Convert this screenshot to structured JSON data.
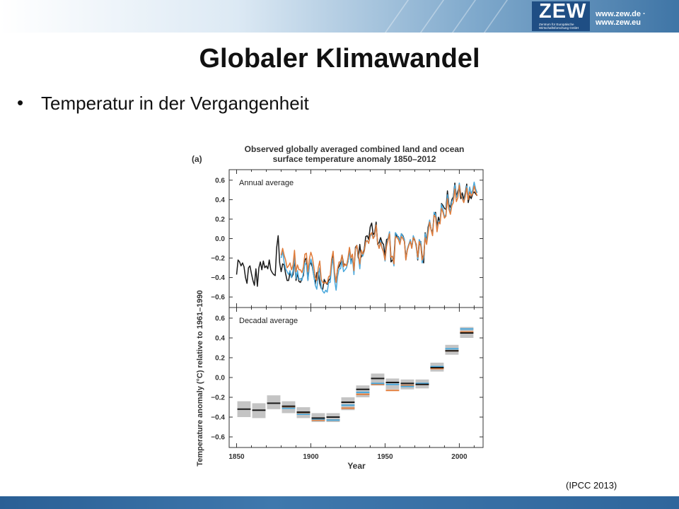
{
  "header": {
    "logo_text": "ZEW",
    "logo_subtitle": "Zentrum für Europäische Wirtschaftsforschung GmbH",
    "url": "www.zew.de · www.zew.eu"
  },
  "slide": {
    "title": "Globaler Klimawandel",
    "bullet_symbol": "•",
    "bullet_text": "Temperatur in der Vergangenheit",
    "source": "(IPCC 2013)"
  },
  "colors": {
    "black_series": "#1a1a1a",
    "blue_series": "#4aa8dc",
    "orange_series": "#e07b39",
    "uncertainty_box": "#c4c4c4"
  },
  "chart_data": {
    "type": "line",
    "panel_label": "(a)",
    "title": "Observed globally averaged combined land and ocean surface temperature anomaly 1850–2012",
    "title_lines": [
      "Observed globally averaged combined land and ocean",
      "surface temperature anomaly 1850–2012"
    ],
    "xlabel": "Year",
    "ylabel": "Temperature anomaly (°C) relative to 1961–1990",
    "xlim": [
      1845,
      2016
    ],
    "ylim": [
      -0.65,
      0.65
    ],
    "xticks": [
      "1850",
      "1900",
      "1950",
      "2000"
    ],
    "yticks": [
      "0.6",
      "0.4",
      "0.2",
      "0.0",
      "−0.2",
      "−0.4",
      "−0.6"
    ],
    "panels": [
      {
        "label": "Annual average",
        "kind": "annual",
        "series": [
          {
            "color": "#1a1a1a",
            "x_start": 1850,
            "values": [
              -0.37,
              -0.22,
              -0.24,
              -0.28,
              -0.25,
              -0.29,
              -0.4,
              -0.46,
              -0.3,
              -0.28,
              -0.36,
              -0.43,
              -0.48,
              -0.31,
              -0.49,
              -0.3,
              -0.24,
              -0.32,
              -0.23,
              -0.3,
              -0.28,
              -0.31,
              -0.22,
              -0.32,
              -0.35,
              -0.37,
              -0.38,
              -0.09,
              0.03,
              -0.25,
              -0.34,
              -0.26,
              -0.27,
              -0.36,
              -0.43,
              -0.43,
              -0.35,
              -0.4,
              -0.37,
              -0.21,
              -0.43,
              -0.36,
              -0.44,
              -0.45,
              -0.41,
              -0.38,
              -0.22,
              -0.2,
              -0.43,
              -0.27,
              -0.25,
              -0.29,
              -0.38,
              -0.47,
              -0.35,
              -0.34,
              -0.46,
              -0.51,
              -0.52,
              -0.42,
              -0.45,
              -0.47,
              -0.43,
              -0.41,
              -0.27,
              -0.18,
              -0.39,
              -0.44,
              -0.31,
              -0.29,
              -0.25,
              -0.17,
              -0.26,
              -0.27,
              -0.27,
              -0.24,
              -0.1,
              -0.23,
              -0.2,
              -0.33,
              -0.09,
              -0.07,
              -0.2,
              -0.06,
              -0.19,
              -0.16,
              -0.11,
              0.02,
              0.03,
              -0.01,
              0.12,
              0.16,
              0.04,
              0.06,
              0.17,
              -0.06,
              -0.04,
              0.01,
              -0.04,
              -0.06,
              -0.18,
              -0.01,
              0.0,
              0.06,
              -0.24,
              -0.22,
              -0.2,
              0.06,
              0.02,
              0.02,
              -0.03,
              0.05,
              0.03,
              -0.01,
              -0.2,
              -0.11,
              -0.06,
              -0.02,
              -0.09,
              0.01,
              -0.02,
              -0.06,
              -0.22,
              -0.06,
              -0.03,
              -0.19,
              -0.25,
              0.06,
              -0.03,
              0.12,
              0.18,
              0.09,
              0.07,
              0.24,
              0.27,
              0.12,
              0.22,
              0.16,
              0.36,
              0.34,
              0.31,
              0.3,
              0.49,
              0.35,
              0.32,
              0.4,
              0.43,
              0.57,
              0.43,
              0.49,
              0.53,
              0.41,
              0.47,
              0.4,
              0.47,
              0.56,
              0.37,
              0.44,
              0.41,
              0.46,
              0.48,
              0.46,
              0.44
            ]
          },
          {
            "color": "#4aa8dc",
            "x_start": 1880,
            "values": [
              -0.2,
              -0.13,
              -0.24,
              -0.31,
              -0.34,
              -0.37,
              -0.33,
              -0.4,
              -0.33,
              -0.18,
              -0.41,
              -0.33,
              -0.42,
              -0.41,
              -0.43,
              -0.35,
              -0.25,
              -0.27,
              -0.43,
              -0.29,
              -0.21,
              -0.27,
              -0.38,
              -0.48,
              -0.52,
              -0.38,
              -0.3,
              -0.5,
              -0.54,
              -0.56,
              -0.53,
              -0.55,
              -0.45,
              -0.45,
              -0.29,
              -0.2,
              -0.43,
              -0.53,
              -0.39,
              -0.31,
              -0.31,
              -0.23,
              -0.34,
              -0.32,
              -0.3,
              -0.24,
              -0.12,
              -0.26,
              -0.2,
              -0.37,
              -0.1,
              -0.08,
              -0.17,
              -0.31,
              -0.12,
              -0.18,
              -0.13,
              -0.04,
              -0.02,
              -0.04,
              0.02,
              0.05,
              0.02,
              0.02,
              0.14,
              -0.04,
              -0.1,
              -0.02,
              -0.09,
              -0.14,
              -0.23,
              -0.07,
              0.0,
              0.07,
              -0.18,
              -0.19,
              -0.28,
              0.06,
              0.04,
              0.01,
              -0.03,
              0.05,
              0.02,
              -0.01,
              -0.22,
              -0.11,
              -0.06,
              -0.01,
              -0.1,
              0.03,
              -0.01,
              -0.09,
              -0.21,
              -0.01,
              -0.04,
              -0.25,
              -0.19,
              0.05,
              -0.04,
              0.09,
              0.19,
              0.09,
              0.04,
              0.27,
              0.25,
              0.09,
              0.18,
              0.18,
              0.35,
              0.3,
              0.22,
              0.25,
              0.45,
              0.33,
              0.28,
              0.38,
              0.41,
              0.55,
              0.42,
              0.46,
              0.57,
              0.46,
              0.42,
              0.38,
              0.45,
              0.54,
              0.42,
              0.53,
              0.46,
              0.5,
              0.58,
              0.51,
              0.47
            ]
          },
          {
            "color": "#e07b39",
            "x_start": 1880,
            "values": [
              -0.17,
              -0.1,
              -0.17,
              -0.22,
              -0.3,
              -0.28,
              -0.25,
              -0.32,
              -0.27,
              -0.12,
              -0.34,
              -0.27,
              -0.32,
              -0.32,
              -0.35,
              -0.29,
              -0.16,
              -0.15,
              -0.34,
              -0.21,
              -0.14,
              -0.19,
              -0.29,
              -0.4,
              -0.43,
              -0.3,
              -0.23,
              -0.42,
              -0.45,
              -0.46,
              -0.45,
              -0.46,
              -0.39,
              -0.38,
              -0.21,
              -0.13,
              -0.35,
              -0.45,
              -0.31,
              -0.24,
              -0.24,
              -0.17,
              -0.29,
              -0.26,
              -0.28,
              -0.2,
              -0.09,
              -0.2,
              -0.16,
              -0.33,
              -0.11,
              -0.07,
              -0.16,
              -0.26,
              -0.12,
              -0.16,
              -0.13,
              -0.03,
              -0.02,
              -0.05,
              0.04,
              0.06,
              0.0,
              0.03,
              0.14,
              -0.04,
              -0.1,
              -0.04,
              -0.1,
              -0.14,
              -0.22,
              -0.08,
              -0.02,
              0.05,
              -0.19,
              -0.18,
              -0.26,
              0.02,
              0.01,
              -0.01,
              -0.06,
              0.02,
              0.0,
              -0.03,
              -0.22,
              -0.12,
              -0.07,
              -0.03,
              -0.1,
              0.01,
              -0.01,
              -0.07,
              -0.19,
              -0.03,
              -0.07,
              -0.22,
              -0.17,
              0.01,
              -0.06,
              0.06,
              0.17,
              0.09,
              0.03,
              0.24,
              0.22,
              0.07,
              0.17,
              0.15,
              0.31,
              0.27,
              0.21,
              0.23,
              0.41,
              0.3,
              0.25,
              0.34,
              0.37,
              0.51,
              0.38,
              0.42,
              0.55,
              0.45,
              0.41,
              0.37,
              0.43,
              0.52,
              0.4,
              0.48,
              0.44,
              0.46,
              0.54,
              0.48,
              0.44
            ]
          }
        ]
      },
      {
        "label": "Decadal average",
        "kind": "decadal",
        "decades": [
          1850,
          1860,
          1870,
          1880,
          1890,
          1900,
          1910,
          1920,
          1930,
          1940,
          1950,
          1960,
          1970,
          1980,
          1990,
          2000
        ],
        "box_low": [
          -0.4,
          -0.41,
          -0.32,
          -0.36,
          -0.41,
          -0.45,
          -0.45,
          -0.33,
          -0.2,
          -0.08,
          -0.12,
          -0.12,
          -0.11,
          0.06,
          0.23,
          0.4
        ],
        "box_high": [
          -0.24,
          -0.26,
          -0.18,
          -0.24,
          -0.3,
          -0.36,
          -0.36,
          -0.2,
          -0.08,
          0.04,
          -0.01,
          -0.02,
          -0.02,
          0.15,
          0.33,
          0.51
        ],
        "series": [
          {
            "color": "#1a1a1a",
            "values": [
              -0.32,
              -0.33,
              -0.26,
              -0.29,
              -0.35,
              -0.41,
              -0.4,
              -0.25,
              -0.12,
              -0.01,
              -0.05,
              -0.06,
              -0.07,
              0.1,
              0.27,
              0.45
            ]
          },
          {
            "color": "#4aa8dc",
            "values": [
              null,
              null,
              null,
              -0.31,
              -0.37,
              -0.42,
              -0.43,
              -0.28,
              -0.15,
              -0.06,
              -0.07,
              -0.09,
              -0.06,
              0.11,
              0.29,
              0.49
            ]
          },
          {
            "color": "#e07b39",
            "values": [
              null,
              null,
              null,
              -0.3,
              -0.36,
              -0.43,
              -0.43,
              -0.31,
              -0.17,
              -0.07,
              -0.13,
              -0.08,
              -0.07,
              0.09,
              0.27,
              0.46
            ]
          }
        ]
      }
    ]
  }
}
